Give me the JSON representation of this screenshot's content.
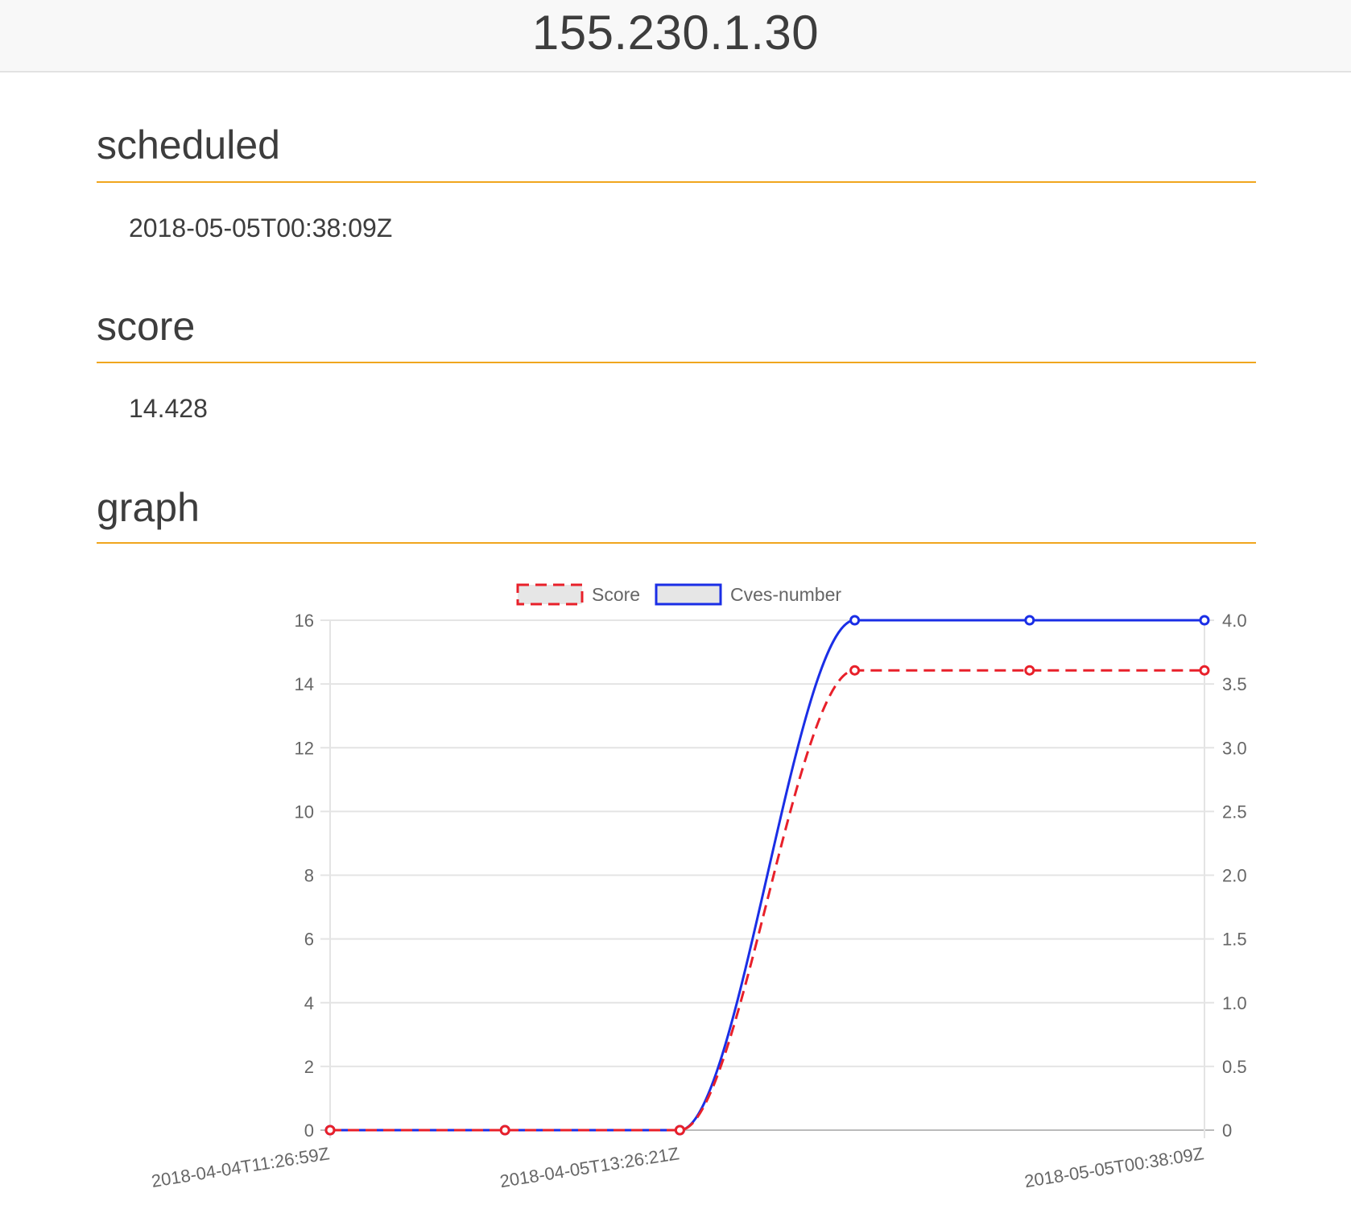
{
  "header": {
    "title": "155.230.1.30"
  },
  "sections": {
    "scheduled": {
      "title": "scheduled",
      "value": "2018-05-05T00:38:09Z"
    },
    "score": {
      "title": "score",
      "value": "14.428"
    },
    "graph": {
      "title": "graph"
    }
  },
  "colors": {
    "accent": "#f0a61e",
    "score_line": "#e8202a",
    "cves_line": "#1a2ee6",
    "legend_fill": "#e6e6e6",
    "grid": "#e4e4e4"
  },
  "chart_data": {
    "type": "line",
    "x": [
      "2018-04-04T11:26:59Z",
      "",
      "2018-04-05T13:26:21Z",
      "",
      "",
      "2018-05-05T00:38:09Z"
    ],
    "x_tick_labels": [
      "2018-04-04T11:26:59Z",
      "2018-04-05T13:26:21Z",
      "2018-05-05T00:38:09Z"
    ],
    "series": [
      {
        "name": "Score",
        "axis": "left",
        "style": "dashed",
        "color": "#e8202a",
        "values": [
          0,
          0,
          0,
          14.428,
          14.428,
          14.428
        ]
      },
      {
        "name": "Cves-number",
        "axis": "right",
        "style": "solid",
        "color": "#1a2ee6",
        "values": [
          0,
          0,
          0,
          4,
          4,
          4
        ]
      }
    ],
    "y_left": {
      "ylim": [
        0,
        16
      ],
      "ticks": [
        "0",
        "2",
        "4",
        "6",
        "8",
        "10",
        "12",
        "14",
        "16"
      ]
    },
    "y_right": {
      "ylim": [
        0,
        4
      ],
      "ticks": [
        "0",
        "0.5",
        "1.0",
        "1.5",
        "2.0",
        "2.5",
        "3.0",
        "3.5",
        "4.0"
      ]
    },
    "grid": true,
    "legend_position": "top"
  }
}
